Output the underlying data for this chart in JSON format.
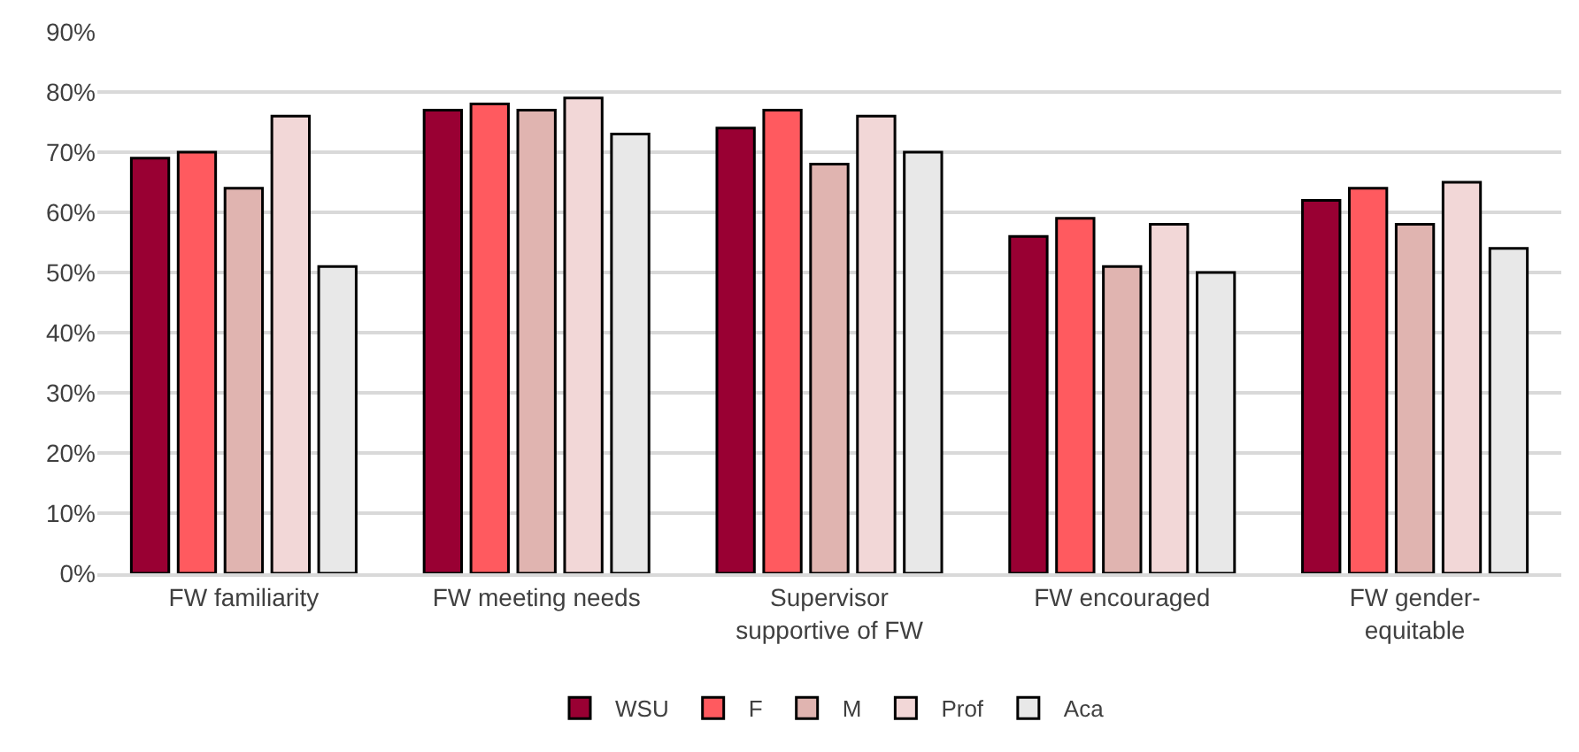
{
  "chart_data": {
    "type": "bar",
    "categories": [
      "FW familiarity",
      "FW meeting needs",
      "Supervisor\nsupportive of FW",
      "FW encouraged",
      "FW gender-\nequitable"
    ],
    "series": [
      {
        "name": "WSU",
        "color": "#990033",
        "values": [
          69,
          77,
          74,
          56,
          62
        ]
      },
      {
        "name": "F",
        "color": "#ff5a5f",
        "values": [
          70,
          78,
          77,
          59,
          64
        ]
      },
      {
        "name": "M",
        "color": "#e0b4b0",
        "values": [
          64,
          77,
          68,
          51,
          58
        ]
      },
      {
        "name": "Prof",
        "color": "#f2d7d7",
        "values": [
          76,
          79,
          76,
          58,
          65
        ]
      },
      {
        "name": "Aca",
        "color": "#e8e8e8",
        "values": [
          51,
          73,
          70,
          50,
          54
        ]
      }
    ],
    "ylim": [
      0,
      90
    ],
    "yticks": [
      {
        "value": 0,
        "label": "0%"
      },
      {
        "value": 10,
        "label": "10%"
      },
      {
        "value": 20,
        "label": "20%"
      },
      {
        "value": 30,
        "label": "30%"
      },
      {
        "value": 40,
        "label": "40%"
      },
      {
        "value": 50,
        "label": "50%"
      },
      {
        "value": 60,
        "label": "60%"
      },
      {
        "value": 70,
        "label": "70%"
      },
      {
        "value": 80,
        "label": "80%"
      },
      {
        "value": 90,
        "label": "90%"
      }
    ],
    "grid": "y",
    "legend": "bottom"
  }
}
